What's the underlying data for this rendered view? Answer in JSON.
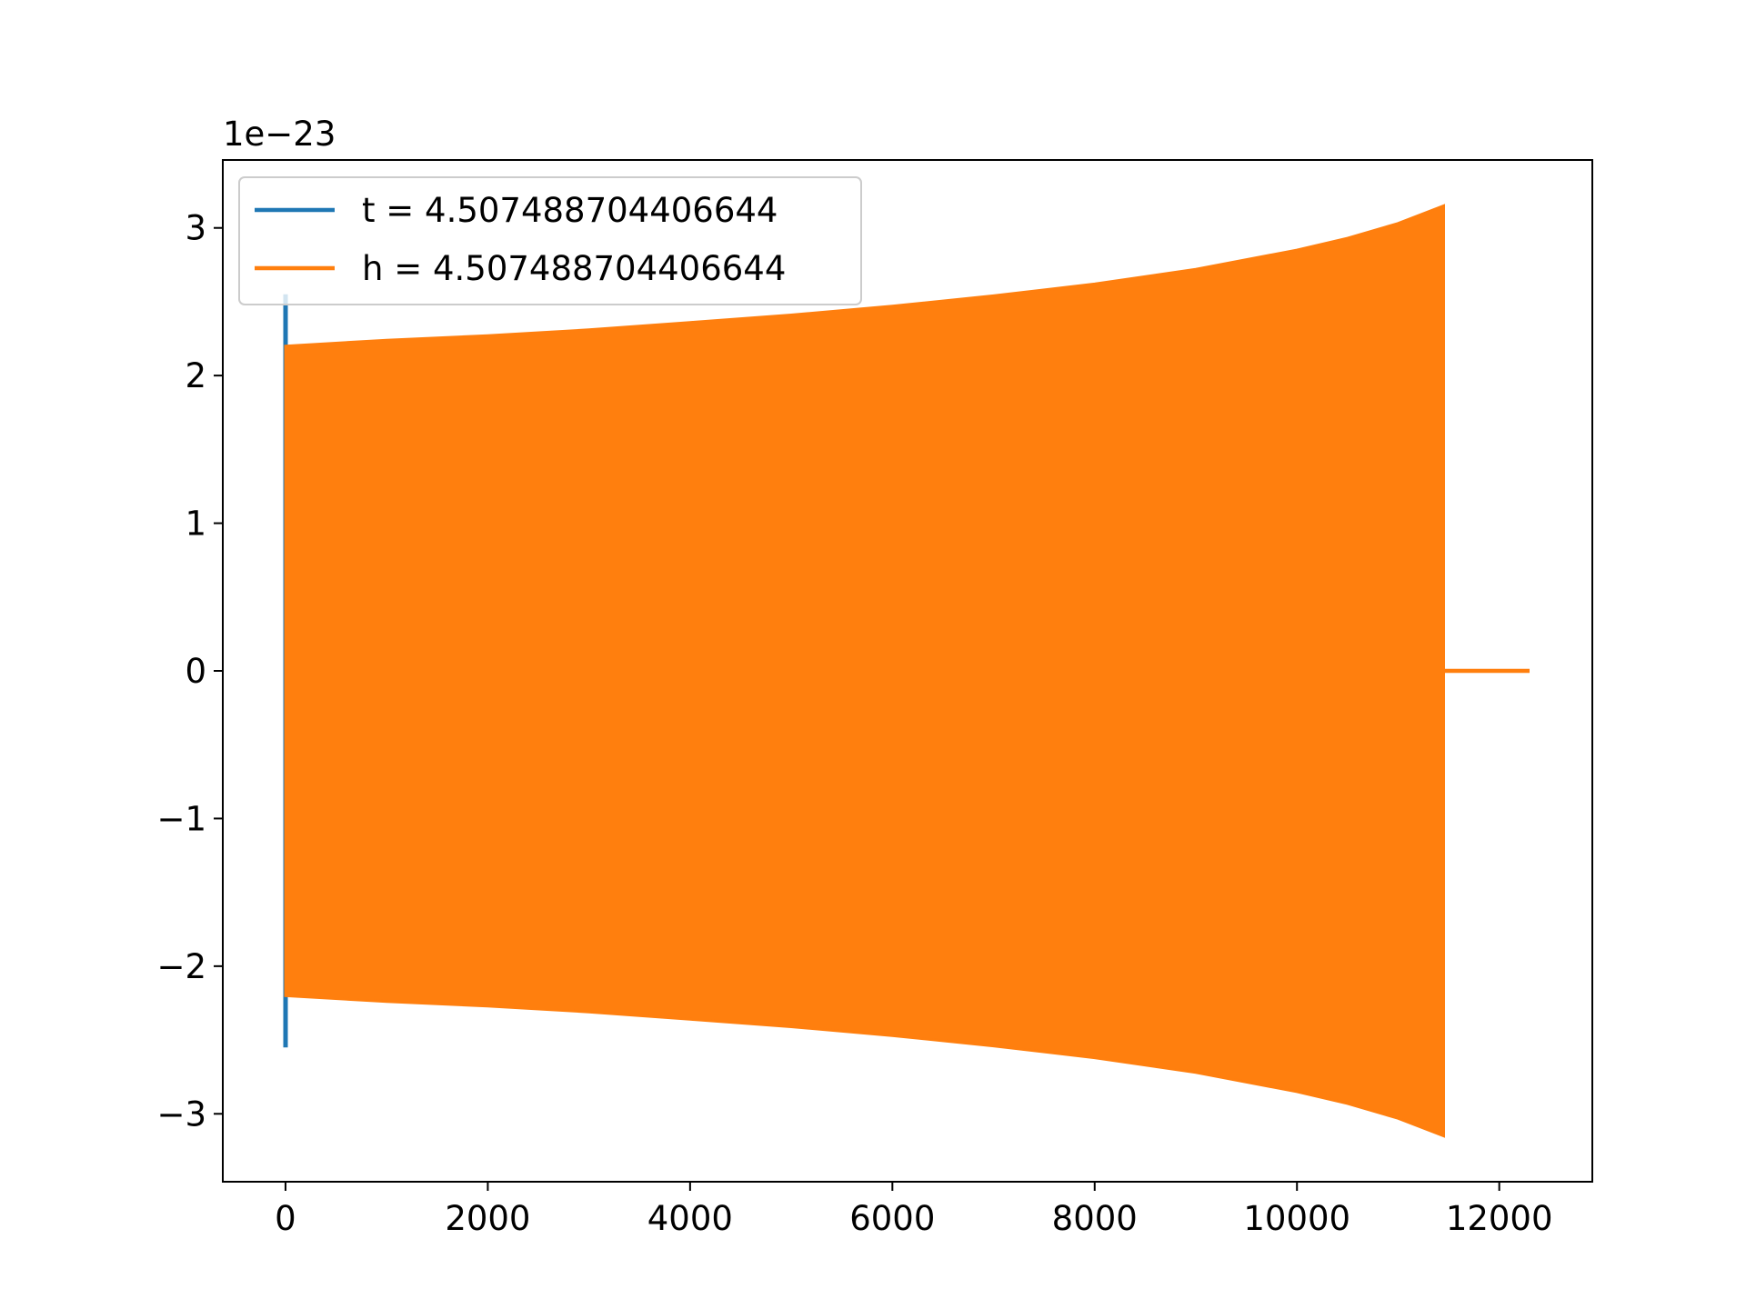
{
  "chart_data": {
    "type": "line",
    "title": "",
    "xlabel": "",
    "ylabel": "",
    "y_offset_label": "1e−23",
    "xlim": [
      -620,
      12920
    ],
    "ylim": [
      -3.46,
      3.46
    ],
    "xticks": [
      0,
      2000,
      4000,
      6000,
      8000,
      10000,
      12000
    ],
    "xtick_labels": [
      "0",
      "2000",
      "4000",
      "6000",
      "8000",
      "10000",
      "12000"
    ],
    "yticks": [
      -3,
      -2,
      -1,
      0,
      1,
      2,
      3
    ],
    "ytick_labels": [
      "−3",
      "−2",
      "−1",
      "0",
      "1",
      "2",
      "3"
    ],
    "grid": false,
    "legend_position": "upper left",
    "series": [
      {
        "name": "t = 4.507488704406644",
        "color": "#1f77b4",
        "x": [
          0,
          0,
          0,
          0
        ],
        "y": [
          0,
          2.55,
          -2.55,
          0
        ]
      },
      {
        "name": "h = 4.507488704406644",
        "color": "#ff7f0e",
        "envelope": {
          "x": [
            0,
            1000,
            2000,
            3000,
            4000,
            5000,
            6000,
            7000,
            8000,
            9000,
            10000,
            10500,
            11000,
            11450
          ],
          "upper": [
            2.2,
            2.24,
            2.27,
            2.31,
            2.36,
            2.41,
            2.47,
            2.54,
            2.62,
            2.72,
            2.85,
            2.93,
            3.03,
            3.15
          ],
          "lower": [
            -2.2,
            -2.24,
            -2.27,
            -2.31,
            -2.36,
            -2.41,
            -2.47,
            -2.54,
            -2.62,
            -2.72,
            -2.85,
            -2.93,
            -3.03,
            -3.15
          ]
        },
        "tail": {
          "x": [
            11450,
            12300
          ],
          "y": [
            0,
            0
          ]
        }
      }
    ]
  }
}
